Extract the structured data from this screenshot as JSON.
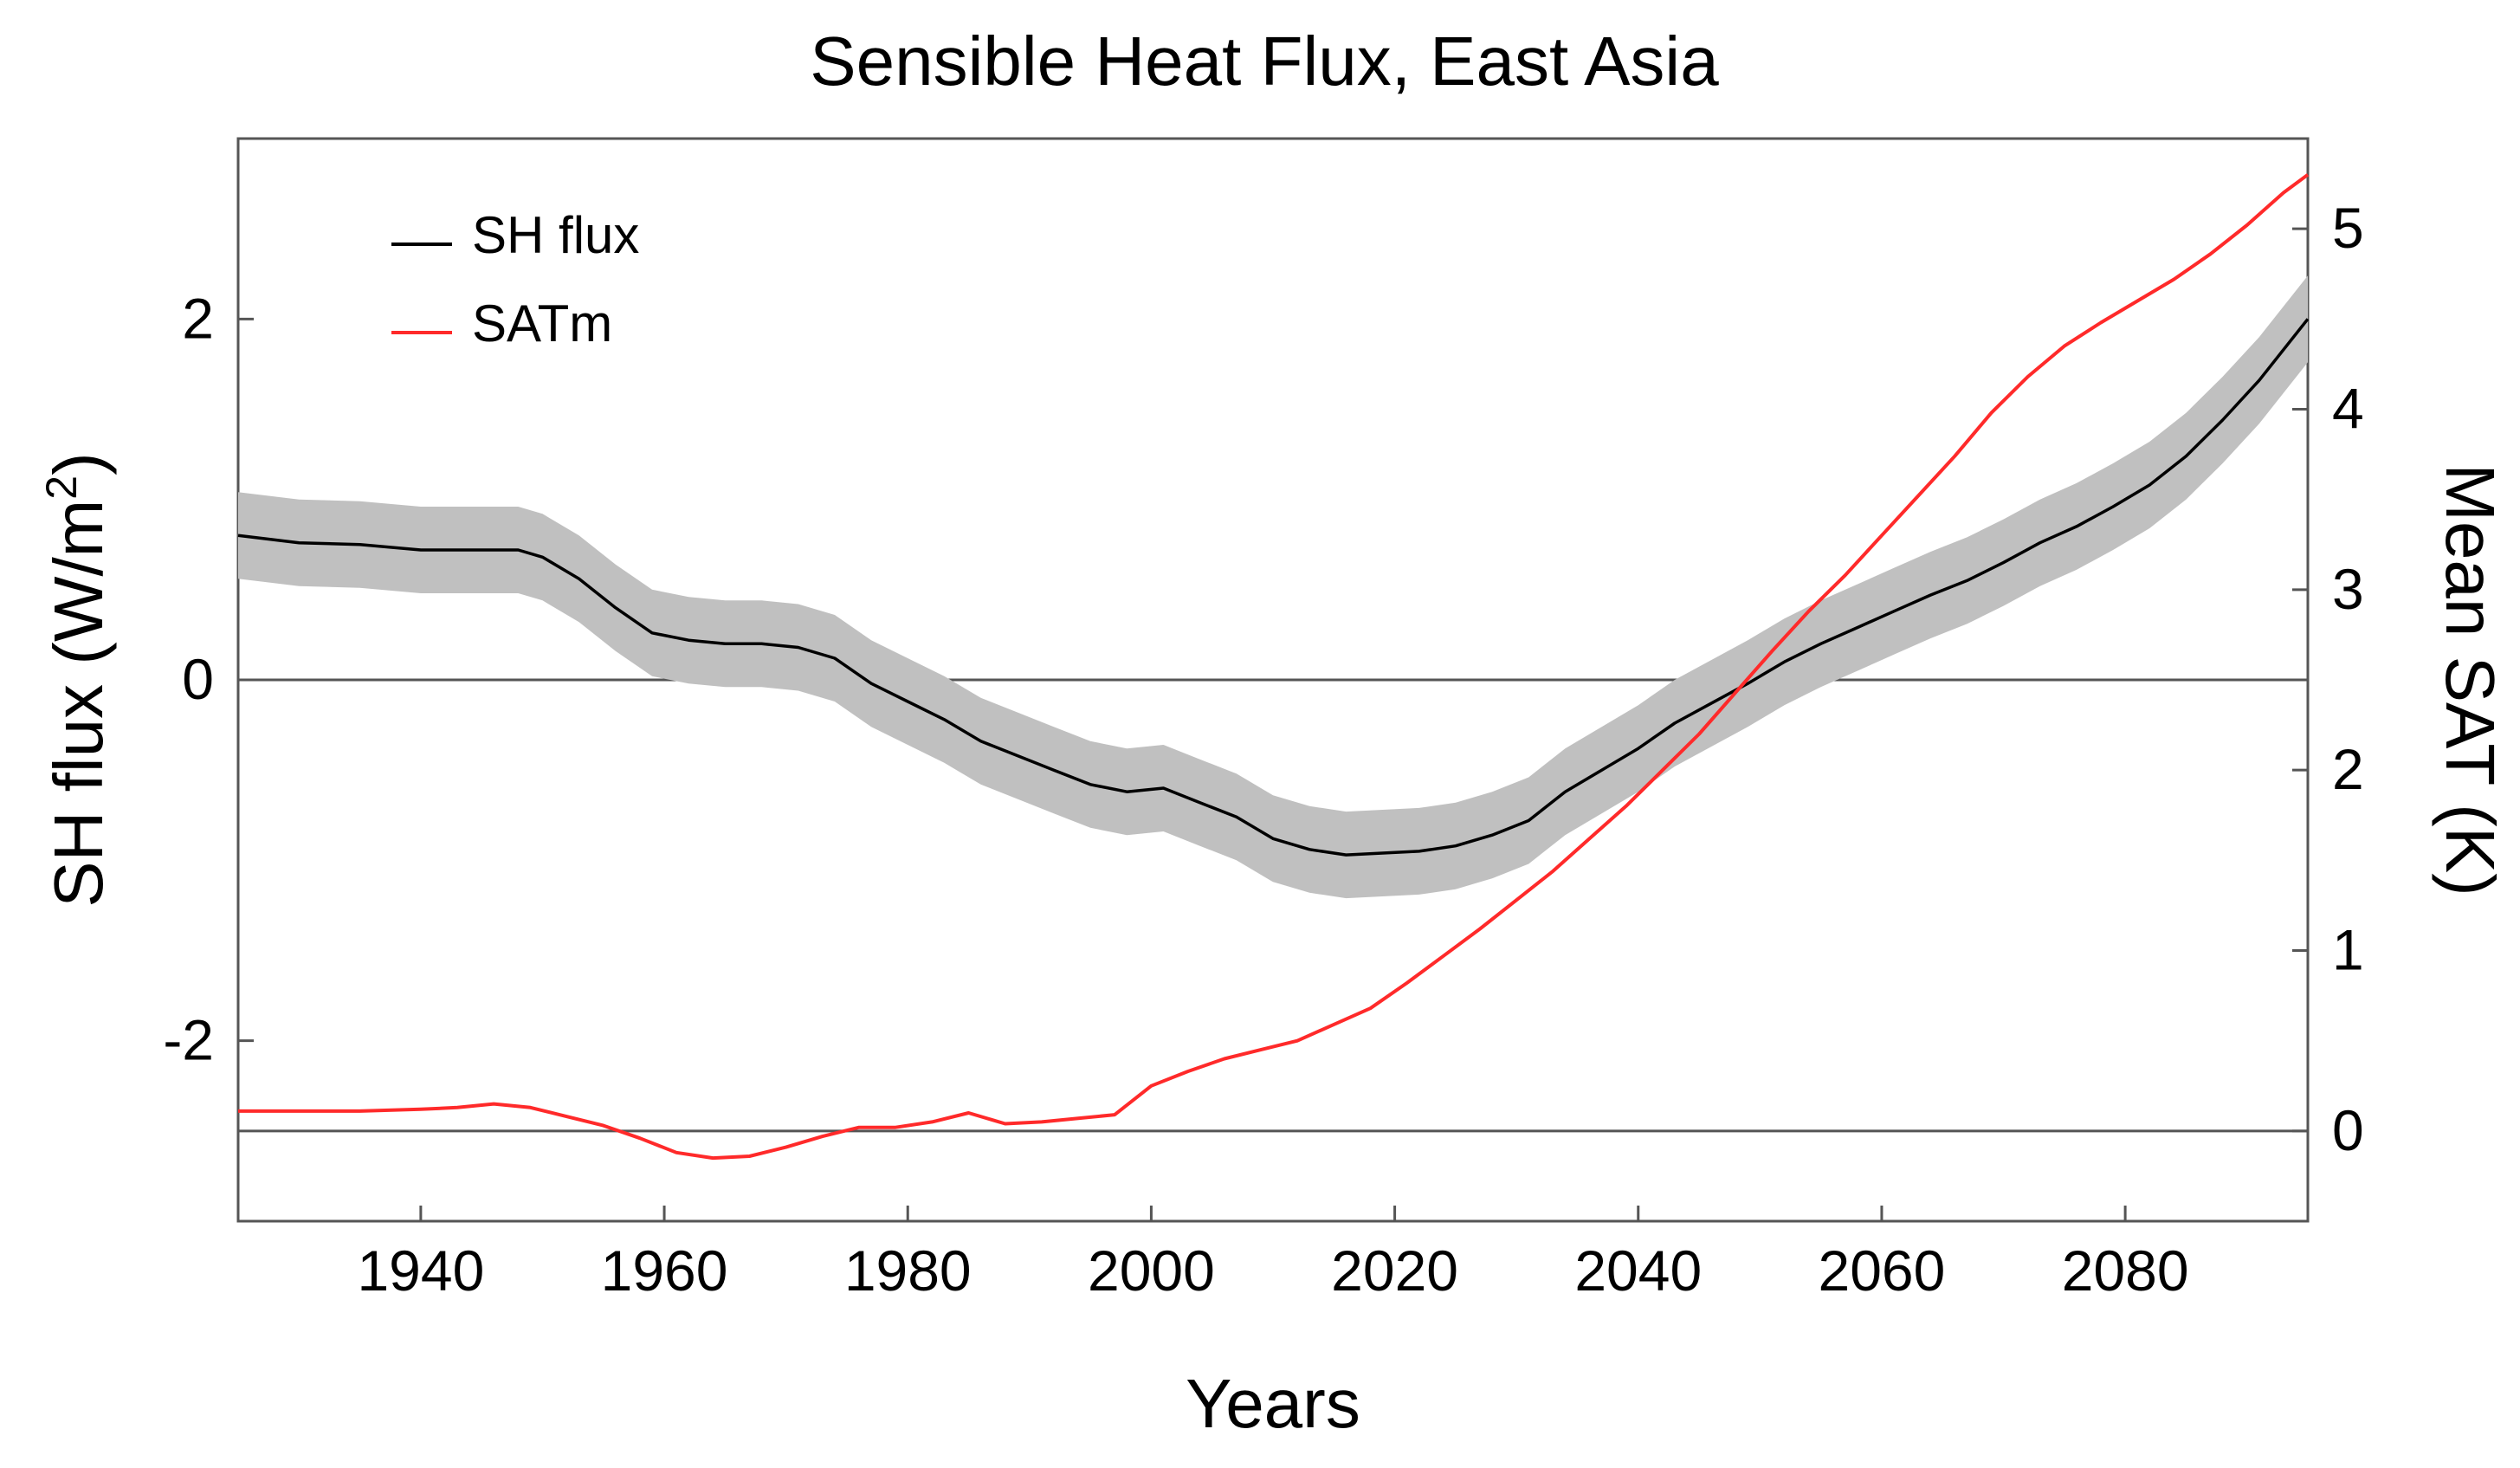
{
  "chart_data": {
    "type": "line",
    "title": "Sensible Heat Flux, East Asia",
    "xlabel": "Years",
    "ylabel_left": "SH flux (W/m",
    "ylabel_left_sup": "2",
    "ylabel_left_close": ")",
    "ylabel_right": "Mean SAT (K)",
    "xlim": [
      1925,
      2095
    ],
    "ylim_left": [
      -3.0,
      3.0
    ],
    "ylim_right": [
      -0.5,
      5.5
    ],
    "x_ticks": [
      1940,
      1960,
      1980,
      2000,
      2020,
      2040,
      2060,
      2080
    ],
    "x_tick_labels": [
      "1940",
      "1960",
      "1980",
      "2000",
      "2020",
      "2040",
      "2060",
      "2080"
    ],
    "y_left_ticks": [
      -2,
      0,
      2
    ],
    "y_left_tick_labels": [
      "-2",
      "0",
      "2"
    ],
    "y_right_ticks": [
      0,
      1,
      2,
      3,
      4,
      5
    ],
    "y_right_tick_labels": [
      "0",
      "1",
      "2",
      "3",
      "4",
      "5"
    ],
    "reference_lines": [
      {
        "axis": "left",
        "value": 0
      },
      {
        "axis": "right",
        "value": 0
      }
    ],
    "legend": [
      {
        "label": "SH flux",
        "color": "#000000"
      },
      {
        "label": "SATm",
        "color": "#ff2a2a"
      }
    ],
    "band_color": "#c0c0c0",
    "series": [
      {
        "name": "SH flux",
        "axis": "left",
        "color": "#000000",
        "band_halfwidth": 0.24,
        "x": [
          1925,
          1930,
          1935,
          1940,
          1945,
          1948,
          1950,
          1953,
          1956,
          1959,
          1962,
          1965,
          1968,
          1971,
          1974,
          1977,
          1980,
          1983,
          1986,
          1989,
          1992,
          1995,
          1998,
          2001,
          2004,
          2007,
          2010,
          2013,
          2016,
          2019,
          2022,
          2025,
          2028,
          2031,
          2034,
          2037,
          2040,
          2043,
          2046,
          2049,
          2052,
          2055,
          2058,
          2061,
          2064,
          2067,
          2070,
          2073,
          2076,
          2079,
          2082,
          2085,
          2088,
          2091,
          2095
        ],
        "y": [
          0.8,
          0.76,
          0.75,
          0.72,
          0.72,
          0.72,
          0.68,
          0.56,
          0.4,
          0.26,
          0.22,
          0.2,
          0.2,
          0.18,
          0.12,
          -0.02,
          -0.12,
          -0.22,
          -0.34,
          -0.42,
          -0.5,
          -0.58,
          -0.62,
          -0.6,
          -0.68,
          -0.76,
          -0.88,
          -0.94,
          -0.97,
          -0.96,
          -0.95,
          -0.92,
          -0.86,
          -0.78,
          -0.62,
          -0.5,
          -0.38,
          -0.24,
          -0.13,
          -0.02,
          0.1,
          0.2,
          0.29,
          0.38,
          0.47,
          0.55,
          0.65,
          0.76,
          0.85,
          0.96,
          1.08,
          1.24,
          1.44,
          1.66,
          2.0
        ]
      },
      {
        "name": "SATm",
        "axis": "right",
        "color": "#ff2a2a",
        "x": [
          1925,
          1930,
          1935,
          1940,
          1943,
          1946,
          1949,
          1952,
          1955,
          1958,
          1961,
          1964,
          1967,
          1970,
          1973,
          1976,
          1979,
          1982,
          1985,
          1988,
          1991,
          1994,
          1997,
          2000,
          2003,
          2006,
          2009,
          2012,
          2015,
          2018,
          2021,
          2024,
          2027,
          2030,
          2033,
          2036,
          2039,
          2042,
          2045,
          2048,
          2051,
          2054,
          2057,
          2060,
          2063,
          2066,
          2069,
          2072,
          2075,
          2078,
          2081,
          2084,
          2087,
          2090,
          2093,
          2095
        ],
        "y": [
          0.11,
          0.11,
          0.11,
          0.12,
          0.13,
          0.15,
          0.13,
          0.08,
          0.03,
          -0.04,
          -0.12,
          -0.15,
          -0.14,
          -0.09,
          -0.03,
          0.02,
          0.02,
          0.05,
          0.1,
          0.04,
          0.05,
          0.07,
          0.09,
          0.25,
          0.33,
          0.4,
          0.45,
          0.5,
          0.59,
          0.68,
          0.82,
          0.97,
          1.12,
          1.28,
          1.44,
          1.62,
          1.8,
          2.0,
          2.2,
          2.43,
          2.66,
          2.88,
          3.08,
          3.3,
          3.52,
          3.74,
          3.98,
          4.18,
          4.35,
          4.48,
          4.6,
          4.72,
          4.86,
          5.02,
          5.2,
          5.3
        ]
      }
    ]
  }
}
